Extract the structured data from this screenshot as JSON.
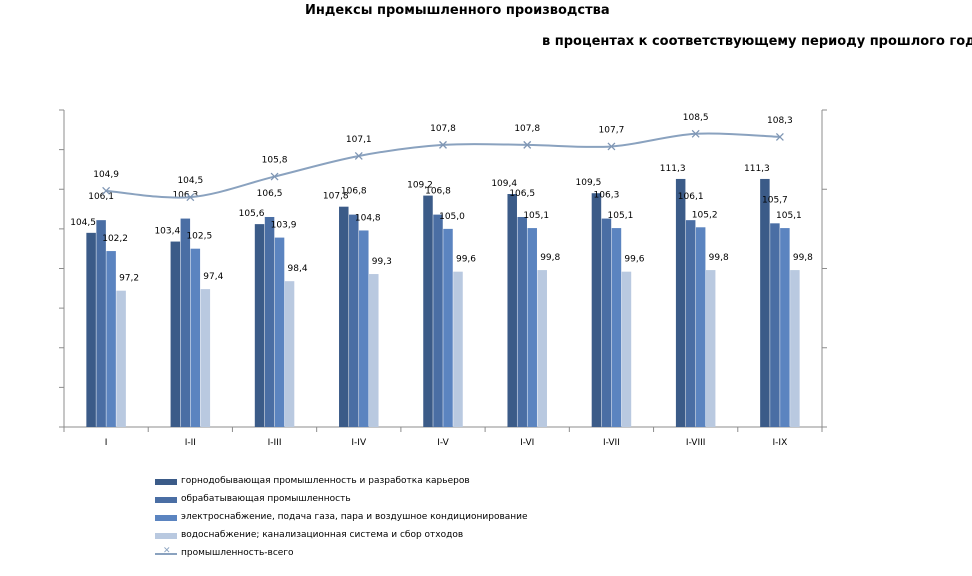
{
  "chart_data": {
    "type": "bar",
    "title": "Индексы промышленного производства",
    "subtitle": "в процентах к соответствующему периоду прошлого года",
    "categories": [
      "I",
      "I-II",
      "I-III",
      "I-IV",
      "I-V",
      "I-VI",
      "I-VII",
      "I-VIII",
      "I-IX"
    ],
    "series": [
      {
        "name": "горнодобывающая промышленность  и разработка карьеров",
        "kind": "bar",
        "color": "#3b5b88",
        "values": [
          104.5,
          103.4,
          105.6,
          107.8,
          109.2,
          109.4,
          109.5,
          111.3,
          111.3
        ],
        "labels": [
          "104,5",
          "103,4",
          "105,6",
          "107,8",
          "109,2",
          "109,4",
          "109,5",
          "111,3",
          "111,3"
        ]
      },
      {
        "name": "обрабатывающая промышленность",
        "kind": "bar",
        "color": "#4a6ea4",
        "values": [
          106.1,
          106.3,
          106.5,
          106.8,
          106.8,
          106.5,
          106.3,
          106.1,
          105.7
        ],
        "labels": [
          "106,1",
          "106,3",
          "106,5",
          "106,8",
          "106,8",
          "106,5",
          "106,3",
          "106,1",
          "105,7"
        ]
      },
      {
        "name": "электроснабжение,  подача газа, пара и воздушное  кондиционирование",
        "kind": "bar",
        "color": "#5b84c0",
        "values": [
          102.2,
          102.5,
          103.9,
          104.8,
          105.0,
          105.1,
          105.1,
          105.2,
          105.1
        ],
        "labels": [
          "102,2",
          "102,5",
          "103,9",
          "104,8",
          "105,0",
          "105,1",
          "105,1",
          "105,2",
          "105,1"
        ]
      },
      {
        "name": "водоснабжение;  канализационная система и сбор  отходов",
        "kind": "bar",
        "color": "#b9c9e0",
        "values": [
          97.2,
          97.4,
          98.4,
          99.3,
          99.6,
          99.8,
          99.6,
          99.8,
          99.8
        ],
        "labels": [
          "97,2",
          "97,4",
          "98,4",
          "99,3",
          "99,6",
          "99,8",
          "99,6",
          "99,8",
          "99,8"
        ]
      },
      {
        "name": "промышленность-всего",
        "kind": "line",
        "color": "#8aa2bf",
        "axis": "secondary",
        "values": [
          104.9,
          104.5,
          105.8,
          107.1,
          107.8,
          107.8,
          107.7,
          108.5,
          108.3
        ],
        "labels": [
          "104,9",
          "104,5",
          "105,8",
          "107,1",
          "107,8",
          "107,8",
          "107,7",
          "108,5",
          "108,3"
        ]
      }
    ],
    "ylim_bars": [
      80,
      120
    ],
    "ylim_line": [
      90,
      110
    ],
    "grid": false,
    "legend_position": "bottom-left"
  }
}
